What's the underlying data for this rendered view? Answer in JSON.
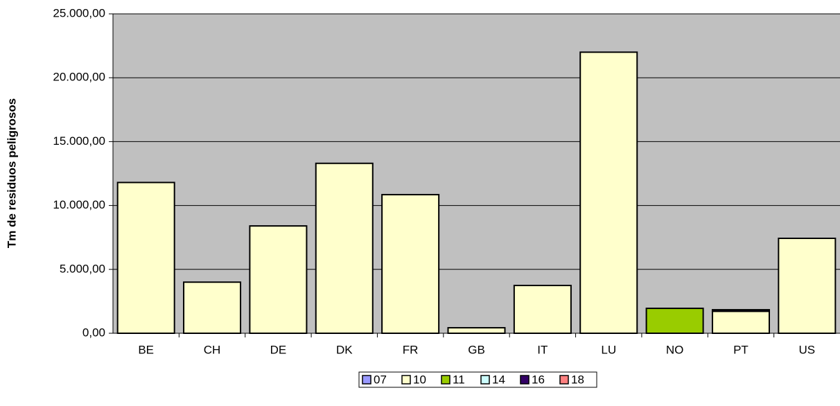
{
  "chart_data": {
    "type": "stacked_bar",
    "y_label": "Tm de residuos peligrosos",
    "categories": [
      "BE",
      "CH",
      "DE",
      "DK",
      "FR",
      "GB",
      "IT",
      "LU",
      "NO",
      "PT",
      "US"
    ],
    "series": [
      {
        "name": "07",
        "color": "#9999ff",
        "values": [
          null,
          null,
          null,
          null,
          null,
          null,
          null,
          null,
          null,
          null,
          null
        ]
      },
      {
        "name": "10",
        "color": "#ffffcc",
        "values": [
          11800,
          4000,
          8400,
          13300,
          10850,
          430,
          3740,
          22000,
          null,
          1720,
          7430
        ]
      },
      {
        "name": "11",
        "color": "#99cc00",
        "values": [
          null,
          null,
          null,
          null,
          null,
          null,
          null,
          null,
          1950,
          null,
          null
        ]
      },
      {
        "name": "14",
        "color": "#ccffff",
        "values": [
          null,
          null,
          null,
          null,
          null,
          null,
          null,
          null,
          null,
          null,
          null
        ]
      },
      {
        "name": "16",
        "color": "#330066",
        "values": [
          null,
          null,
          null,
          null,
          null,
          null,
          null,
          null,
          null,
          120,
          null
        ]
      },
      {
        "name": "18",
        "color": "#ff8080",
        "values": [
          null,
          null,
          null,
          null,
          null,
          null,
          null,
          null,
          null,
          null,
          null
        ]
      }
    ],
    "ylim": [
      0,
      25000
    ],
    "yticks": [
      {
        "value": 0,
        "label": "0,00"
      },
      {
        "value": 5000,
        "label": "5.000,00"
      },
      {
        "value": 10000,
        "label": "10.000,00"
      },
      {
        "value": 15000,
        "label": "15.000,00"
      },
      {
        "value": 20000,
        "label": "20.000,00"
      },
      {
        "value": 25000,
        "label": "25.000,00"
      }
    ],
    "grid": true,
    "legend": "bottom"
  }
}
